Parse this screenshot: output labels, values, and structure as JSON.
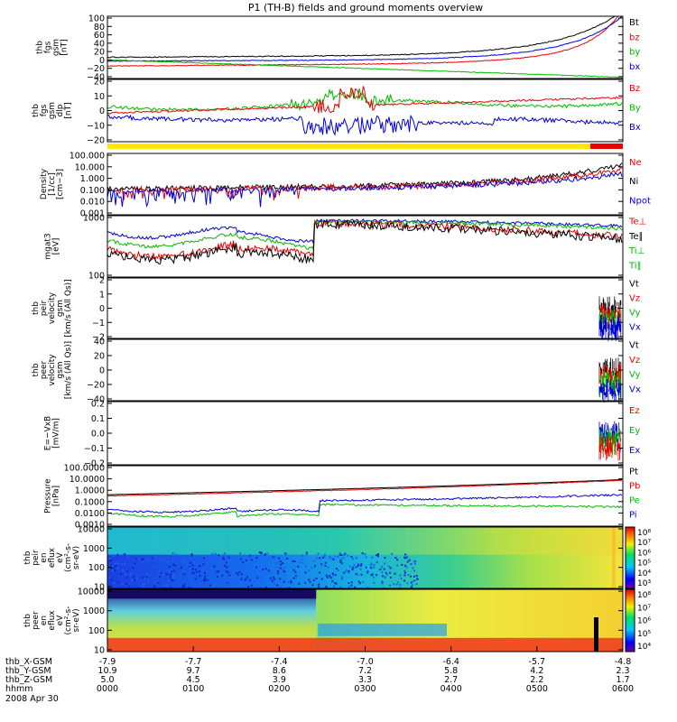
{
  "chart_data": {
    "type": "line",
    "title": "P1  (TH-B) fields and ground moments overview",
    "x": {
      "labels": [
        "0000",
        "0100",
        "0200",
        "0300",
        "0400",
        "0500",
        "0600"
      ],
      "footer": [
        {
          "label": "thb_X-GSM",
          "values": [
            "-7.9",
            "-7.7",
            "-7.4",
            "-7.0",
            "-6.4",
            "-5.7",
            "-4.8"
          ]
        },
        {
          "label": "thb_Y-GSM",
          "values": [
            "10.9",
            "9.7",
            "8.6",
            "7.2",
            "5.8",
            "4.2",
            "2.3"
          ]
        },
        {
          "label": "thb_Z-GSM",
          "values": [
            "5.0",
            "4.5",
            "3.9",
            "3.3",
            "2.7",
            "2.2",
            "1.7"
          ]
        },
        {
          "label": "hhmm",
          "values": []
        }
      ],
      "date": "2008 Apr 30"
    },
    "colorbars": [
      {
        "labels": [
          "10⁸",
          "10⁷",
          "10⁶",
          "10⁵",
          "10⁴",
          "10³"
        ]
      },
      {
        "labels": [
          "10⁸",
          "10⁷",
          "10⁶",
          "10⁵",
          "10⁴"
        ]
      }
    ],
    "panels": [
      {
        "ylabel": [
          "thb",
          "fgs",
          "gsm",
          "[nT]"
        ],
        "ticks": [
          "100",
          "80",
          "60",
          "40",
          "20",
          "0",
          "−20",
          "−40"
        ],
        "legend": [
          {
            "name": "Bt",
            "color": "#000000"
          },
          {
            "name": "bz",
            "color": "#ee0000"
          },
          {
            "name": "by",
            "color": "#00bb00"
          },
          {
            "name": "bx",
            "color": "#0000dd"
          }
        ]
      },
      {
        "ylabel": [
          "thb",
          "fgs",
          "gsm",
          "dlp",
          "[nT]"
        ],
        "ticks": [
          "20",
          "10",
          "0",
          "−10",
          "−20"
        ],
        "legend": [
          {
            "name": "Bz",
            "color": "#ee0000"
          },
          {
            "name": "By",
            "color": "#00bb00"
          },
          {
            "name": "Bx",
            "color": "#0000dd"
          }
        ]
      },
      {
        "ylabel": [
          "Density",
          "[1/cc]",
          "[cm−3]"
        ],
        "ticks": [
          "100.000",
          "10.000",
          "1.000",
          "0.100",
          "0.010",
          "0.001"
        ],
        "legend": [
          {
            "name": "Ne",
            "color": "#ee0000"
          },
          {
            "name": "Ni",
            "color": "#000000"
          },
          {
            "name": "Npot",
            "color": "#0000dd"
          }
        ]
      },
      {
        "ylabel": [
          "mgat3",
          "[eV]"
        ],
        "ticks": [
          "1000",
          "100"
        ],
        "legend": [
          {
            "name": "Te⊥",
            "color": "#ee0000"
          },
          {
            "name": "Te∥",
            "color": "#000000"
          },
          {
            "name": "Ti⊥",
            "color": "#00bb00"
          },
          {
            "name": "Ti∥",
            "color": "#00bb00"
          }
        ]
      },
      {
        "ylabel": [
          "thb",
          "peir",
          "velocity",
          "gsm",
          "[km/s (All Qs)]"
        ],
        "ticks": [
          "2",
          "1",
          "0",
          "−1",
          "−2"
        ],
        "legend": [
          {
            "name": "Vt",
            "color": "#000000"
          },
          {
            "name": "Vz",
            "color": "#ee0000"
          },
          {
            "name": "Vy",
            "color": "#00bb00"
          },
          {
            "name": "Vx",
            "color": "#0000dd"
          }
        ]
      },
      {
        "ylabel": [
          "thb",
          "peer",
          "velocity",
          "gsm",
          "[km/s (All Qs)]"
        ],
        "ticks": [
          "40",
          "20",
          "0",
          "−20",
          "−40"
        ],
        "legend": [
          {
            "name": "Vt",
            "color": "#000000"
          },
          {
            "name": "Vz",
            "color": "#ee0000"
          },
          {
            "name": "Vy",
            "color": "#00bb00"
          },
          {
            "name": "Vx",
            "color": "#0000dd"
          }
        ]
      },
      {
        "ylabel": [
          "E=−VxB",
          "[mV/m]"
        ],
        "ticks": [
          "0.2",
          "0.1",
          "0.0",
          "−0.1",
          "−0.2"
        ],
        "legend": [
          {
            "name": "Ez",
            "color": "#ee0000"
          },
          {
            "name": "Ey",
            "color": "#00bb00"
          },
          {
            "name": "Ex",
            "color": "#0000dd"
          }
        ]
      },
      {
        "ylabel": [
          "Pressure",
          "[nPa]"
        ],
        "ticks": [
          "100.0000",
          "10.0000",
          "1.0000",
          "0.1000",
          "0.0100",
          "0.0010"
        ],
        "legend": [
          {
            "name": "Pt",
            "color": "#000000"
          },
          {
            "name": "Pb",
            "color": "#ee0000"
          },
          {
            "name": "Pe",
            "color": "#00bb00"
          },
          {
            "name": "Pi",
            "color": "#0000dd"
          }
        ]
      },
      {
        "ylabel": [
          "thb",
          "peir",
          "en",
          "eflux",
          "eV",
          "(cm²-s-",
          "sr-eV)"
        ],
        "ticks": [
          "10000",
          "1000",
          "100",
          "10"
        ],
        "legend": []
      },
      {
        "ylabel": [
          "thb",
          "peer",
          "en",
          "eflux",
          "eV",
          "(cm²-s-",
          "sr-eV)"
        ],
        "ticks": [
          "10000",
          "1000",
          "100",
          "10"
        ],
        "legend": []
      }
    ]
  }
}
